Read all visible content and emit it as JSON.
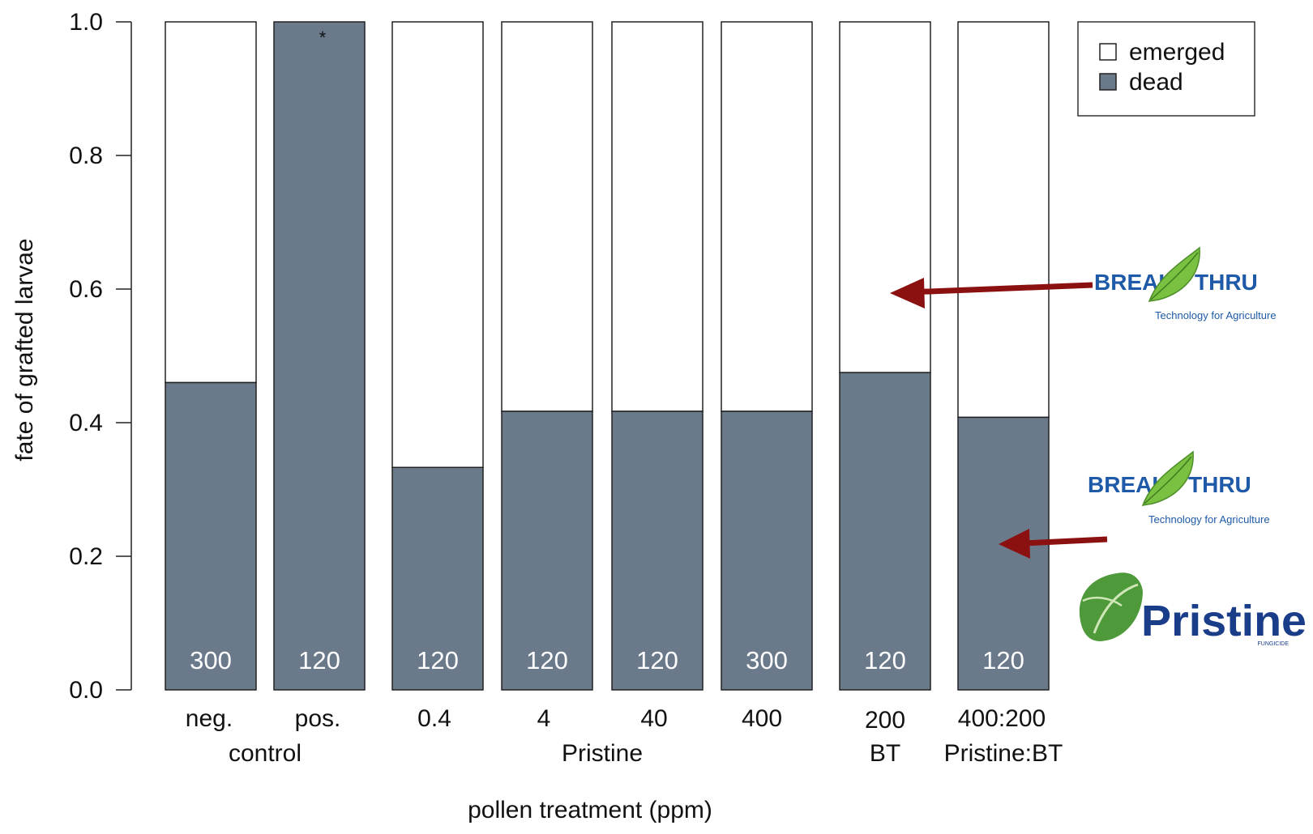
{
  "chart_data": {
    "type": "bar",
    "stacked": true,
    "ylabel": "fate of grafted larvae",
    "xlabel": "pollen treatment (ppm)",
    "ylim": [
      0,
      1.0
    ],
    "yticks": [
      "0.0",
      "0.2",
      "0.4",
      "0.6",
      "0.8",
      "1.0"
    ],
    "categories": [
      "neg.",
      "pos.",
      "0.4",
      "4",
      "40",
      "400",
      "200",
      "400:200"
    ],
    "group_labels": [
      {
        "label": "control",
        "from": 0,
        "to": 1
      },
      {
        "label": "Pristine",
        "from": 2,
        "to": 5
      },
      {
        "label": "BT",
        "from": 6,
        "to": 6
      },
      {
        "label": "Pristine:BT",
        "from": 7,
        "to": 7
      }
    ],
    "series": [
      {
        "name": "dead",
        "color": "#6b7a8b",
        "values": [
          0.46,
          1.0,
          0.333,
          0.417,
          0.417,
          0.417,
          0.475,
          0.408
        ]
      },
      {
        "name": "emerged",
        "color": "#ffffff",
        "values": [
          0.54,
          0.0,
          0.667,
          0.583,
          0.583,
          0.583,
          0.525,
          0.592
        ]
      }
    ],
    "sample_sizes": [
      "300",
      "120",
      "120",
      "120",
      "120",
      "300",
      "120",
      "120"
    ],
    "annotations": [
      {
        "category": "pos.",
        "text": "*"
      }
    ],
    "legend": {
      "position": "top-right",
      "entries": [
        "emerged",
        "dead"
      ]
    }
  },
  "logos": {
    "breakthru_word_left": "BREAK",
    "breakthru_word_right": "THRU",
    "breakthru_tagline": "Technology for Agriculture",
    "pristine_word": "Pristine",
    "pristine_sub": "FUNGICIDE",
    "arrow_color": "#8b1010"
  }
}
